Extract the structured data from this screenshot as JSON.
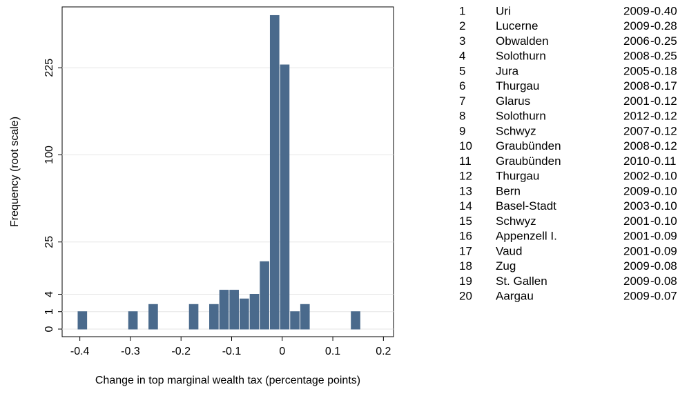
{
  "chart_data": {
    "type": "histogram",
    "x_label": "Change in top marginal wealth tax (percentage points)",
    "y_label": "Frequency (root scale)",
    "y_scale": "sqrt",
    "color": "#4a6a8c",
    "grid": true,
    "bins": [
      -0.405,
      -0.385,
      -0.365,
      -0.345,
      -0.325,
      -0.305,
      -0.285,
      -0.265,
      -0.245,
      -0.225,
      -0.205,
      -0.185,
      -0.165,
      -0.145,
      -0.125,
      -0.105,
      -0.085,
      -0.065,
      -0.045,
      -0.025,
      -0.005,
      0.015,
      0.035,
      0.055,
      0.075,
      0.095,
      0.115,
      0.135,
      0.155
    ],
    "counts": [
      1,
      0,
      0,
      0,
      0,
      1,
      0,
      2,
      0,
      0,
      0,
      2,
      0,
      2,
      5,
      5,
      3,
      4,
      15,
      324,
      230,
      1,
      2,
      0,
      0,
      0,
      0,
      1
    ],
    "xlim": [
      -0.435,
      0.22
    ],
    "xticks": [
      -0.4,
      -0.3,
      -0.2,
      -0.1,
      0,
      0.1,
      0.2
    ],
    "ylim": [
      0,
      342
    ],
    "yticks": [
      0,
      1,
      4,
      25,
      100,
      225
    ]
  },
  "table": {
    "rows": [
      [
        "1",
        "Uri",
        "2009",
        "-0.40"
      ],
      [
        "2",
        "Lucerne",
        "2009",
        "-0.28"
      ],
      [
        "3",
        "Obwalden",
        "2006",
        "-0.25"
      ],
      [
        "4",
        "Solothurn",
        "2008",
        "-0.25"
      ],
      [
        "5",
        "Jura",
        "2005",
        "-0.18"
      ],
      [
        "6",
        "Thurgau",
        "2008",
        "-0.17"
      ],
      [
        "7",
        "Glarus",
        "2001",
        "-0.12"
      ],
      [
        "8",
        "Solothurn",
        "2012",
        "-0.12"
      ],
      [
        "9",
        "Schwyz",
        "2007",
        "-0.12"
      ],
      [
        "10",
        "Graubünden",
        "2008",
        "-0.12"
      ],
      [
        "11",
        "Graubünden",
        "2010",
        "-0.11"
      ],
      [
        "12",
        "Thurgau",
        "2002",
        "-0.10"
      ],
      [
        "13",
        "Bern",
        "2009",
        "-0.10"
      ],
      [
        "14",
        "Basel-Stadt",
        "2003",
        "-0.10"
      ],
      [
        "15",
        "Schwyz",
        "2001",
        "-0.10"
      ],
      [
        "16",
        "Appenzell I.",
        "2001",
        "-0.09"
      ],
      [
        "17",
        "Vaud",
        "2001",
        "-0.09"
      ],
      [
        "18",
        "Zug",
        "2009",
        "-0.08"
      ],
      [
        "19",
        "St. Gallen",
        "2009",
        "-0.08"
      ],
      [
        "20",
        "Aargau",
        "2009",
        "-0.07"
      ]
    ]
  }
}
